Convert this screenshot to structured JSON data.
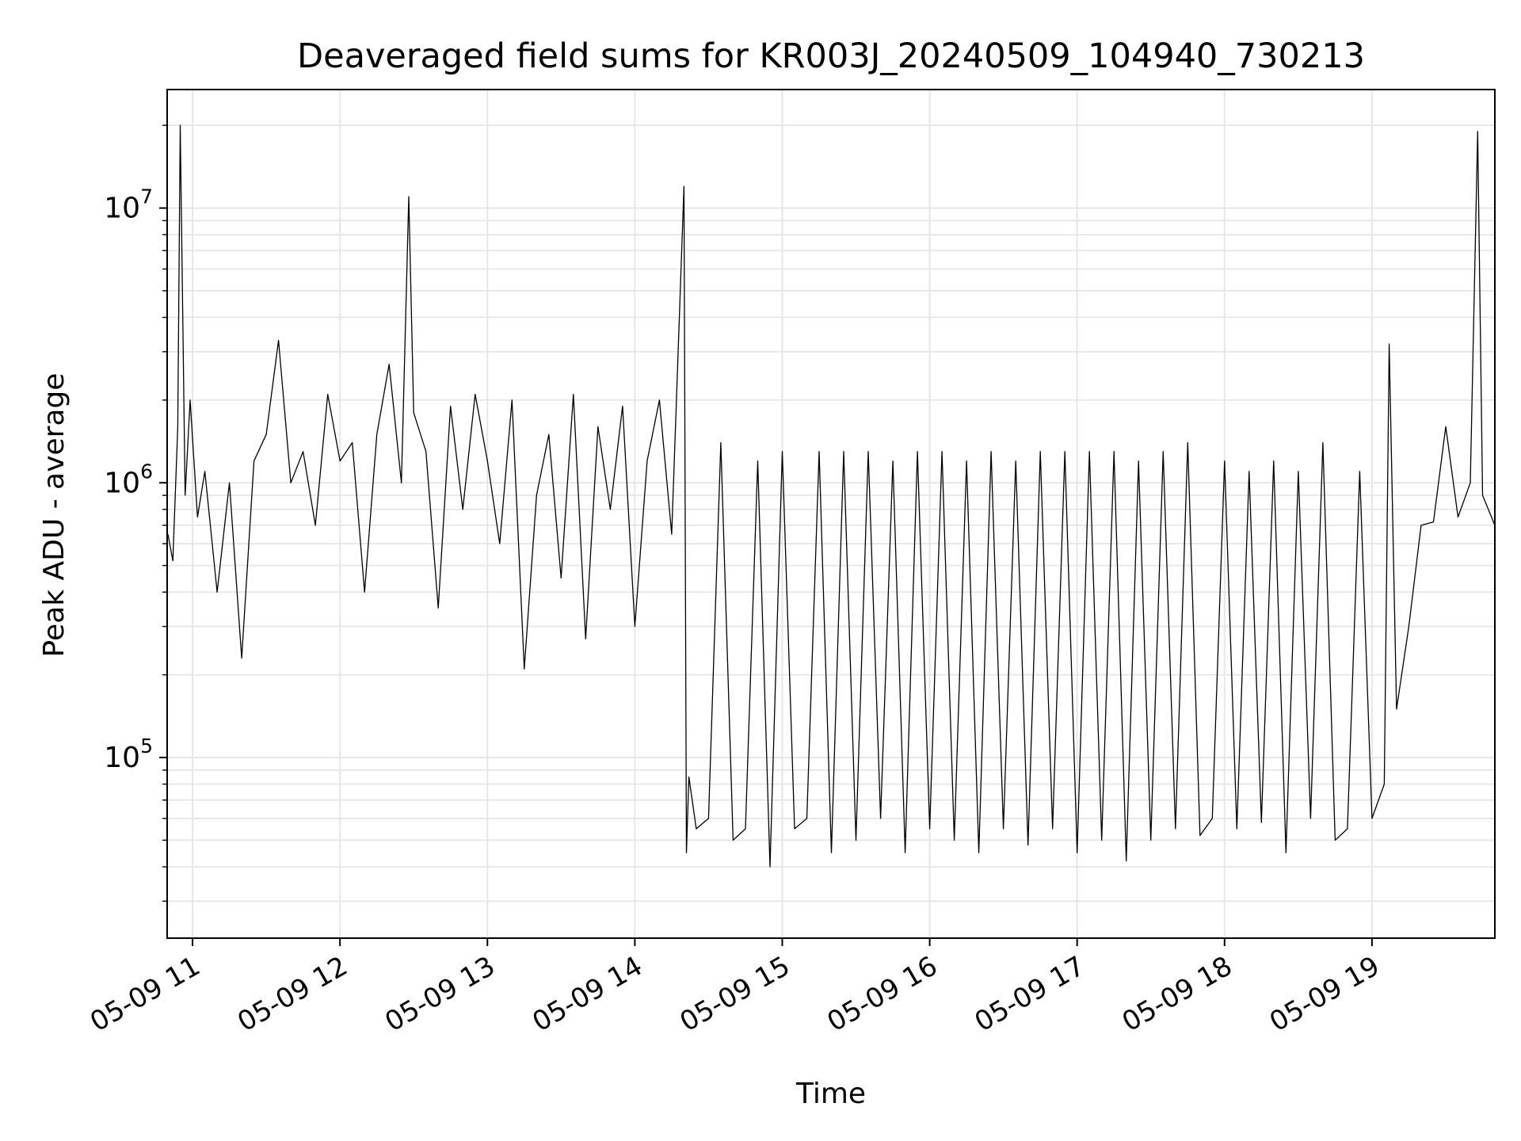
{
  "chart_data": {
    "type": "line",
    "title": "Deaveraged field sums for KR003J_20240509_104940_730213",
    "xlabel": "Time",
    "ylabel": "Peak ADU - average",
    "yscale": "log",
    "ylim": [
      22000,
      27000000
    ],
    "xlim": [
      "2024-05-09 10:49:40",
      "2024-05-09 19:50:00"
    ],
    "xticks": [
      "05-09 11",
      "05-09 12",
      "05-09 13",
      "05-09 14",
      "05-09 15",
      "05-09 16",
      "05-09 17",
      "05-09 18",
      "05-09 19"
    ],
    "yticks": [
      {
        "base": "10",
        "exp": "5",
        "value": 100000
      },
      {
        "base": "10",
        "exp": "6",
        "value": 1000000
      },
      {
        "base": "10",
        "exp": "7",
        "value": 10000000
      }
    ],
    "grid": true,
    "line_color": "#000000",
    "series": [
      {
        "x": [
          "2024-05-09 10:50",
          "2024-05-09 10:52",
          "2024-05-09 10:54",
          "2024-05-09 10:55",
          "2024-05-09 10:57",
          "2024-05-09 10:59",
          "2024-05-09 11:02",
          "2024-05-09 11:05",
          "2024-05-09 11:10",
          "2024-05-09 11:15",
          "2024-05-09 11:20",
          "2024-05-09 11:25",
          "2024-05-09 11:30",
          "2024-05-09 11:35",
          "2024-05-09 11:40",
          "2024-05-09 11:45",
          "2024-05-09 11:50",
          "2024-05-09 11:55",
          "2024-05-09 12:00",
          "2024-05-09 12:05",
          "2024-05-09 12:10",
          "2024-05-09 12:15",
          "2024-05-09 12:20",
          "2024-05-09 12:25",
          "2024-05-09 12:28",
          "2024-05-09 12:30",
          "2024-05-09 12:35",
          "2024-05-09 12:40",
          "2024-05-09 12:45",
          "2024-05-09 12:50",
          "2024-05-09 12:55",
          "2024-05-09 13:00",
          "2024-05-09 13:05",
          "2024-05-09 13:10",
          "2024-05-09 13:15",
          "2024-05-09 13:20",
          "2024-05-09 13:25",
          "2024-05-09 13:30",
          "2024-05-09 13:35",
          "2024-05-09 13:40",
          "2024-05-09 13:45",
          "2024-05-09 13:50",
          "2024-05-09 13:55",
          "2024-05-09 14:00",
          "2024-05-09 14:05",
          "2024-05-09 14:10",
          "2024-05-09 14:15",
          "2024-05-09 14:20",
          "2024-05-09 14:21",
          "2024-05-09 14:22",
          "2024-05-09 14:25",
          "2024-05-09 14:30",
          "2024-05-09 14:35",
          "2024-05-09 14:40",
          "2024-05-09 14:45",
          "2024-05-09 14:50",
          "2024-05-09 14:55",
          "2024-05-09 15:00",
          "2024-05-09 15:05",
          "2024-05-09 15:10",
          "2024-05-09 15:15",
          "2024-05-09 15:20",
          "2024-05-09 15:25",
          "2024-05-09 15:30",
          "2024-05-09 15:35",
          "2024-05-09 15:40",
          "2024-05-09 15:45",
          "2024-05-09 15:50",
          "2024-05-09 15:55",
          "2024-05-09 16:00",
          "2024-05-09 16:05",
          "2024-05-09 16:10",
          "2024-05-09 16:15",
          "2024-05-09 16:20",
          "2024-05-09 16:25",
          "2024-05-09 16:30",
          "2024-05-09 16:35",
          "2024-05-09 16:40",
          "2024-05-09 16:45",
          "2024-05-09 16:50",
          "2024-05-09 16:55",
          "2024-05-09 17:00",
          "2024-05-09 17:05",
          "2024-05-09 17:10",
          "2024-05-09 17:15",
          "2024-05-09 17:20",
          "2024-05-09 17:25",
          "2024-05-09 17:30",
          "2024-05-09 17:35",
          "2024-05-09 17:40",
          "2024-05-09 17:45",
          "2024-05-09 17:50",
          "2024-05-09 17:55",
          "2024-05-09 18:00",
          "2024-05-09 18:05",
          "2024-05-09 18:10",
          "2024-05-09 18:15",
          "2024-05-09 18:20",
          "2024-05-09 18:25",
          "2024-05-09 18:30",
          "2024-05-09 18:35",
          "2024-05-09 18:40",
          "2024-05-09 18:45",
          "2024-05-09 18:50",
          "2024-05-09 18:55",
          "2024-05-09 19:00",
          "2024-05-09 19:05",
          "2024-05-09 19:07",
          "2024-05-09 19:10",
          "2024-05-09 19:15",
          "2024-05-09 19:20",
          "2024-05-09 19:25",
          "2024-05-09 19:30",
          "2024-05-09 19:35",
          "2024-05-09 19:40",
          "2024-05-09 19:43",
          "2024-05-09 19:45",
          "2024-05-09 19:50"
        ],
        "values": [
          650000,
          520000,
          1600000,
          20000000,
          900000,
          2000000,
          750000,
          1100000,
          400000,
          1000000,
          230000,
          1200000,
          1500000,
          3300000,
          1000000,
          1300000,
          700000,
          2100000,
          1200000,
          1400000,
          400000,
          1500000,
          2700000,
          1000000,
          11000000,
          1800000,
          1300000,
          350000,
          1900000,
          800000,
          2100000,
          1200000,
          600000,
          2000000,
          210000,
          900000,
          1500000,
          450000,
          2100000,
          270000,
          1600000,
          800000,
          1900000,
          300000,
          1200000,
          2000000,
          650000,
          12000000,
          45000,
          85000,
          55000,
          60000,
          1400000,
          50000,
          55000,
          1200000,
          40000,
          1300000,
          55000,
          60000,
          1300000,
          45000,
          1300000,
          50000,
          1300000,
          60000,
          1200000,
          45000,
          1300000,
          55000,
          1300000,
          50000,
          1200000,
          45000,
          1300000,
          55000,
          1200000,
          48000,
          1300000,
          55000,
          1300000,
          45000,
          1300000,
          50000,
          1300000,
          42000,
          1200000,
          50000,
          1300000,
          55000,
          1400000,
          52000,
          60000,
          1200000,
          55000,
          1100000,
          58000,
          1200000,
          45000,
          1100000,
          60000,
          1400000,
          50000,
          55000,
          1100000,
          60000,
          80000,
          3200000,
          150000,
          300000,
          700000,
          720000,
          1600000,
          750000,
          1000000,
          19000000,
          900000,
          700000
        ]
      }
    ]
  }
}
